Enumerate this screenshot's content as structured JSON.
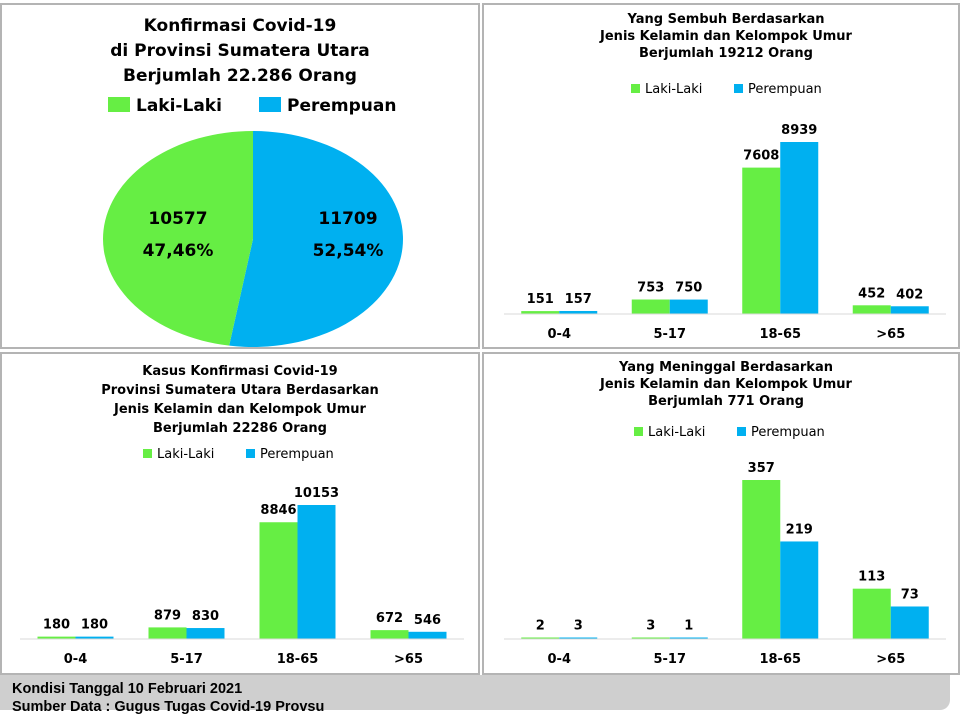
{
  "colors": {
    "male": "#66ee44",
    "female": "#00b0f0",
    "text": "#000000"
  },
  "pie": {
    "title": [
      "Konfirmasi Covid-19",
      "di Provinsi Sumatera Utara",
      "Berjumlah 22.286 Orang"
    ],
    "legend": [
      "Laki-Laki",
      "Perempuan"
    ],
    "slices": [
      {
        "label": "Laki-Laki",
        "value": 10577,
        "value_label": "10577",
        "percent_label": "47,46%"
      },
      {
        "label": "Perempuan",
        "value": 11709,
        "value_label": "11709",
        "percent_label": "52,54%"
      }
    ]
  },
  "chart_data": [
    {
      "type": "pie",
      "title": "Konfirmasi Covid-19 di Provinsi Sumatera Utara Berjumlah 22.286 Orang",
      "categories": [
        "Laki-Laki",
        "Perempuan"
      ],
      "values": [
        10577,
        11709
      ],
      "percent": [
        47.46,
        52.54
      ]
    },
    {
      "type": "bar",
      "title": [
        "Yang Sembuh Berdasarkan",
        "Jenis Kelamin dan Kelompok Umur",
        "Berjumlah 19212 Orang"
      ],
      "categories": [
        "0-4",
        "5-17",
        "18-65",
        ">65"
      ],
      "series": [
        {
          "name": "Laki-Laki",
          "values": [
            151,
            753,
            7608,
            452
          ]
        },
        {
          "name": "Perempuan",
          "values": [
            157,
            750,
            8939,
            402
          ]
        }
      ],
      "ylim": [
        0,
        8939
      ]
    },
    {
      "type": "bar",
      "title": [
        "Kasus Konfirmasi Covid-19",
        "Provinsi Sumatera Utara Berdasarkan",
        "Jenis Kelamin dan Kelompok Umur",
        "Berjumlah 22286 Orang"
      ],
      "categories": [
        "0-4",
        "5-17",
        "18-65",
        ">65"
      ],
      "series": [
        {
          "name": "Laki-Laki",
          "values": [
            180,
            879,
            8846,
            672
          ]
        },
        {
          "name": "Perempuan",
          "values": [
            180,
            830,
            10153,
            546
          ]
        }
      ],
      "ylim": [
        0,
        10153
      ]
    },
    {
      "type": "bar",
      "title": [
        "Yang Meninggal Berdasarkan",
        "Jenis Kelamin dan Kelompok Umur",
        "Berjumlah 771 Orang"
      ],
      "categories": [
        "0-4",
        "5-17",
        "18-65",
        ">65"
      ],
      "series": [
        {
          "name": "Laki-Laki",
          "values": [
            2,
            3,
            357,
            113
          ]
        },
        {
          "name": "Perempuan",
          "values": [
            3,
            1,
            219,
            73
          ]
        }
      ],
      "ylim": [
        0,
        357
      ]
    }
  ],
  "footer": {
    "line1": "Kondisi Tanggal 10 Februari 2021",
    "line2": "Sumber Data : Gugus Tugas Covid-19 Provsu"
  }
}
